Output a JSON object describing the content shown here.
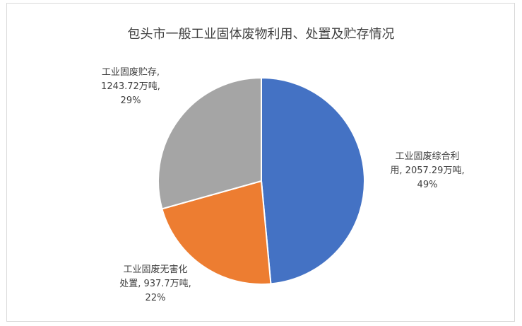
{
  "chart_data": {
    "type": "pie",
    "title": "包头市一般工业固体废物利用、处置及贮存情况",
    "start_angle": "top",
    "direction": "clockwise",
    "slices": [
      {
        "name": "工业固废综合利用",
        "value": 2057.29,
        "unit": "万吨",
        "percent": "49%",
        "color": "#4472c4",
        "label_lines": [
          "工业固废综合利",
          "用, 2057.29万吨,",
          "49%"
        ]
      },
      {
        "name": "工业固废无害化处置",
        "value": 937.7,
        "unit": "万吨",
        "percent": "22%",
        "color": "#ed7d31",
        "label_lines": [
          "工业固废无害化",
          "处置, 937.7万吨,",
          "22%"
        ]
      },
      {
        "name": "工业固废贮存",
        "value": 1243.72,
        "unit": "万吨",
        "percent": "29%",
        "color": "#a5a5a5",
        "label_lines": [
          "工业固废贮存,",
          "1243.72万吨,",
          "29%"
        ]
      }
    ]
  }
}
